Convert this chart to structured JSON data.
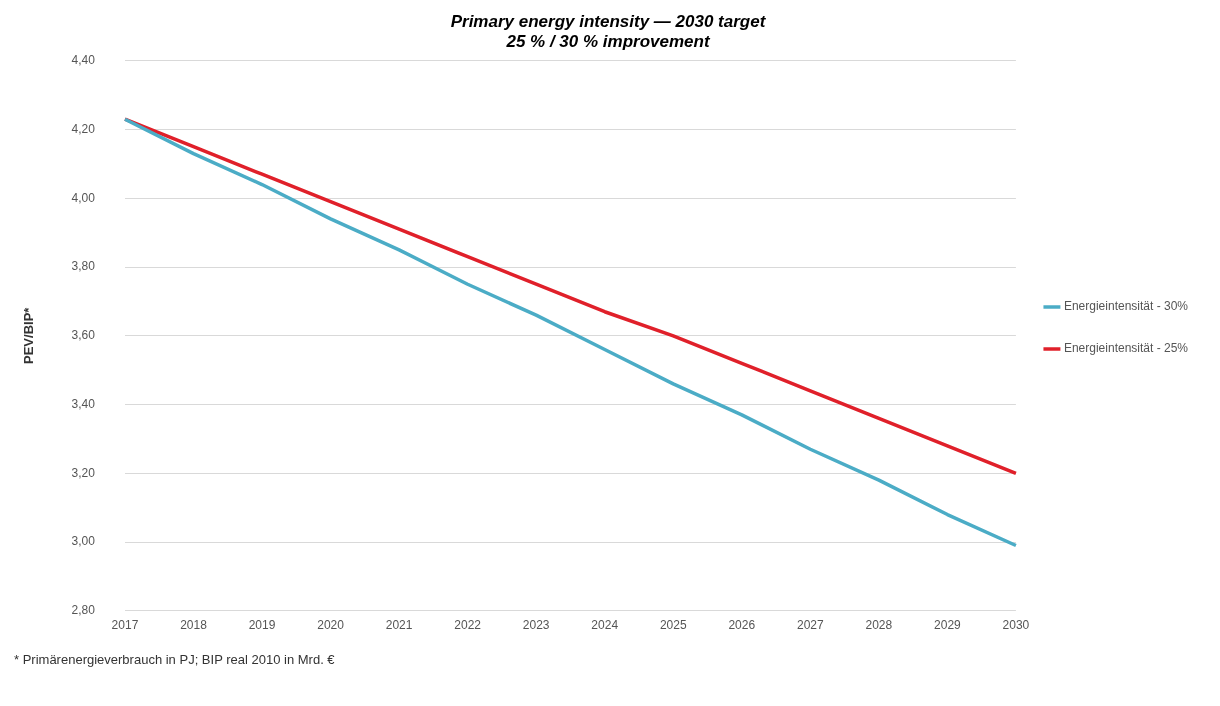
{
  "chart_data": {
    "type": "line",
    "title": [
      "Primary energy intensity — 2030 target",
      "25 % / 30 % improvement"
    ],
    "ylabel": "PEV/BIP*",
    "categories": [
      "2017",
      "2018",
      "2019",
      "2020",
      "2021",
      "2022",
      "2023",
      "2024",
      "2025",
      "2026",
      "2027",
      "2028",
      "2029",
      "2030"
    ],
    "series": [
      {
        "name": "Energieintensität - 30%",
        "color": "#4bacc6",
        "values": [
          4.23,
          4.13,
          4.04,
          3.94,
          3.85,
          3.75,
          3.66,
          3.56,
          3.46,
          3.37,
          3.27,
          3.18,
          3.08,
          2.99
        ]
      },
      {
        "name": "Energieintensität - 25%",
        "color": "#e0202a",
        "values": [
          4.23,
          4.15,
          4.07,
          3.99,
          3.91,
          3.83,
          3.75,
          3.67,
          3.6,
          3.52,
          3.44,
          3.36,
          3.28,
          3.2
        ]
      }
    ],
    "ylim": [
      2.8,
      4.4
    ],
    "yticks": [
      {
        "value": 2.8,
        "label": "2,80"
      },
      {
        "value": 3.0,
        "label": "3,00"
      },
      {
        "value": 3.2,
        "label": "3,20"
      },
      {
        "value": 3.4,
        "label": "3,40"
      },
      {
        "value": 3.6,
        "label": "3,60"
      },
      {
        "value": 3.8,
        "label": "3,80"
      },
      {
        "value": 4.0,
        "label": "4,00"
      },
      {
        "value": 4.2,
        "label": "4,20"
      },
      {
        "value": 4.4,
        "label": "4,40"
      }
    ],
    "grid": "y",
    "legend": "right",
    "marker": "none",
    "line_style": "solid",
    "annotations": [
      "* Primärenergieverbrauch in PJ; BIP real 2010 in Mrd. €"
    ]
  }
}
